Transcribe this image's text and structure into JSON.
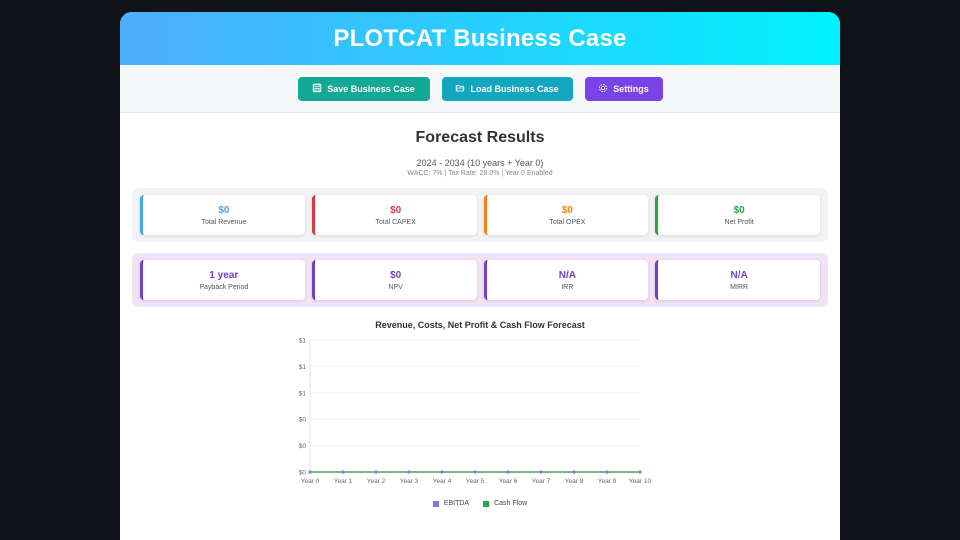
{
  "app": {
    "title": "PLOTCAT Business Case"
  },
  "toolbar": {
    "save_label": "Save Business Case",
    "load_label": "Load Business Case",
    "settings_label": "Settings"
  },
  "results": {
    "title": "Forecast Results",
    "period": "2024 - 2034 (10 years + Year 0)",
    "meta": "WACC: 7% | Tax Rate: 28.0% | Year 0 Enabled"
  },
  "metrics_top": [
    {
      "value": "$0",
      "label": "Total Revenue",
      "color": "#4aa3ef"
    },
    {
      "value": "$0",
      "label": "Total CAPEX",
      "color": "#dc3545"
    },
    {
      "value": "$0",
      "label": "Total OPEX",
      "color": "#fd7e14"
    },
    {
      "value": "$0",
      "label": "Net Profit",
      "color": "#28a745"
    }
  ],
  "metrics_bottom": [
    {
      "value": "1 year",
      "label": "Payback Period",
      "color": "#6f42c1"
    },
    {
      "value": "$0",
      "label": "NPV",
      "color": "#6f42c1"
    },
    {
      "value": "N/A",
      "label": "IRR",
      "color": "#6f42c1"
    },
    {
      "value": "N/A",
      "label": "MIRR",
      "color": "#6f42c1"
    }
  ],
  "chart_data": {
    "type": "line",
    "title": "Revenue, Costs, Net Profit & Cash Flow Forecast",
    "categories": [
      "Year 0",
      "Year 1",
      "Year 2",
      "Year 3",
      "Year 4",
      "Year 5",
      "Year 6",
      "Year 7",
      "Year 8",
      "Year 9",
      "Year 10"
    ],
    "ytick_labels": [
      "$1",
      "$1",
      "$1",
      "$0",
      "$0",
      "$0"
    ],
    "ylim": [
      0,
      1
    ],
    "grid": true,
    "series": [
      {
        "name": "EBITDA",
        "color": "#8e6fe0",
        "values": [
          0,
          0,
          0,
          0,
          0,
          0,
          0,
          0,
          0,
          0,
          0
        ]
      },
      {
        "name": "Cash Flow",
        "color": "#28a745",
        "values": [
          0,
          0,
          0,
          0,
          0,
          0,
          0,
          0,
          0,
          0,
          0
        ]
      }
    ],
    "legend": "bottom"
  }
}
